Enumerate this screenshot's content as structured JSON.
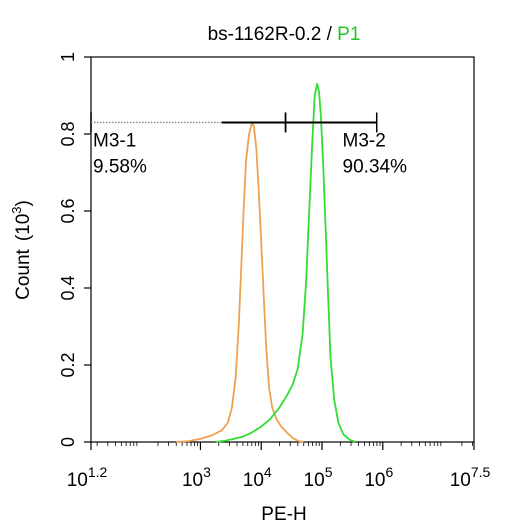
{
  "chart_data": {
    "type": "line",
    "title": "bs-1162R-0.2",
    "title_separator": " / ",
    "title_gate": "P1",
    "title_gate_color": "#22c422",
    "xlabel": "PE-H",
    "ylabel": "Count",
    "ylabel_unit_base": "(10",
    "ylabel_unit_exp": "3",
    "ylabel_unit_close": ")",
    "x_scale": "log10",
    "xlim": [
      1.2,
      7.5
    ],
    "ylim": [
      0,
      1
    ],
    "x_ticks": [
      {
        "value": 1.2,
        "base": "10",
        "exp": "1.2"
      },
      {
        "value": 3,
        "base": "10",
        "exp": "3"
      },
      {
        "value": 4,
        "base": "10",
        "exp": "4"
      },
      {
        "value": 5,
        "base": "10",
        "exp": "5"
      },
      {
        "value": 6,
        "base": "10",
        "exp": "6"
      },
      {
        "value": 7.5,
        "base": "10",
        "exp": "7.5"
      }
    ],
    "y_ticks": [
      {
        "value": 0,
        "label": "0"
      },
      {
        "value": 0.2,
        "label": "0.2"
      },
      {
        "value": 0.4,
        "label": "0.4"
      },
      {
        "value": 0.6,
        "label": "0.6"
      },
      {
        "value": 0.8,
        "label": "0.8"
      },
      {
        "value": 1,
        "label": "1"
      }
    ],
    "grid": false,
    "series": [
      {
        "color": "#f0a050",
        "points": [
          [
            2.6,
            0
          ],
          [
            2.8,
            0.002
          ],
          [
            3.0,
            0.008
          ],
          [
            3.2,
            0.018
          ],
          [
            3.35,
            0.03
          ],
          [
            3.45,
            0.05
          ],
          [
            3.52,
            0.09
          ],
          [
            3.58,
            0.17
          ],
          [
            3.63,
            0.3
          ],
          [
            3.67,
            0.45
          ],
          [
            3.71,
            0.6
          ],
          [
            3.75,
            0.73
          ],
          [
            3.8,
            0.8
          ],
          [
            3.85,
            0.83
          ],
          [
            3.88,
            0.82
          ],
          [
            3.92,
            0.76
          ],
          [
            3.96,
            0.65
          ],
          [
            4.0,
            0.52
          ],
          [
            4.04,
            0.38
          ],
          [
            4.08,
            0.25
          ],
          [
            4.13,
            0.14
          ],
          [
            4.18,
            0.09
          ],
          [
            4.25,
            0.06
          ],
          [
            4.33,
            0.04
          ],
          [
            4.42,
            0.025
          ],
          [
            4.52,
            0.01
          ],
          [
            4.62,
            0.002
          ],
          [
            4.7,
            0
          ]
        ]
      },
      {
        "color": "#33dd33",
        "points": [
          [
            3.25,
            0
          ],
          [
            3.4,
            0.003
          ],
          [
            3.55,
            0.008
          ],
          [
            3.7,
            0.014
          ],
          [
            3.85,
            0.025
          ],
          [
            4.0,
            0.04
          ],
          [
            4.15,
            0.06
          ],
          [
            4.3,
            0.09
          ],
          [
            4.42,
            0.12
          ],
          [
            4.52,
            0.15
          ],
          [
            4.6,
            0.19
          ],
          [
            4.68,
            0.28
          ],
          [
            4.74,
            0.42
          ],
          [
            4.79,
            0.6
          ],
          [
            4.84,
            0.78
          ],
          [
            4.88,
            0.9
          ],
          [
            4.92,
            0.93
          ],
          [
            4.95,
            0.91
          ],
          [
            4.98,
            0.85
          ],
          [
            5.02,
            0.72
          ],
          [
            5.06,
            0.55
          ],
          [
            5.1,
            0.38
          ],
          [
            5.14,
            0.22
          ],
          [
            5.2,
            0.11
          ],
          [
            5.27,
            0.05
          ],
          [
            5.35,
            0.02
          ],
          [
            5.45,
            0.006
          ],
          [
            5.55,
            0
          ]
        ]
      }
    ],
    "gates": [
      {
        "name": "M3-1",
        "percent": "9.58%",
        "x_start": 1.2,
        "x_end": 4.4
      },
      {
        "name": "M3-2",
        "percent": "90.34%",
        "x_start": 4.4,
        "x_end": 5.9
      }
    ],
    "gate_level": 0.83
  }
}
